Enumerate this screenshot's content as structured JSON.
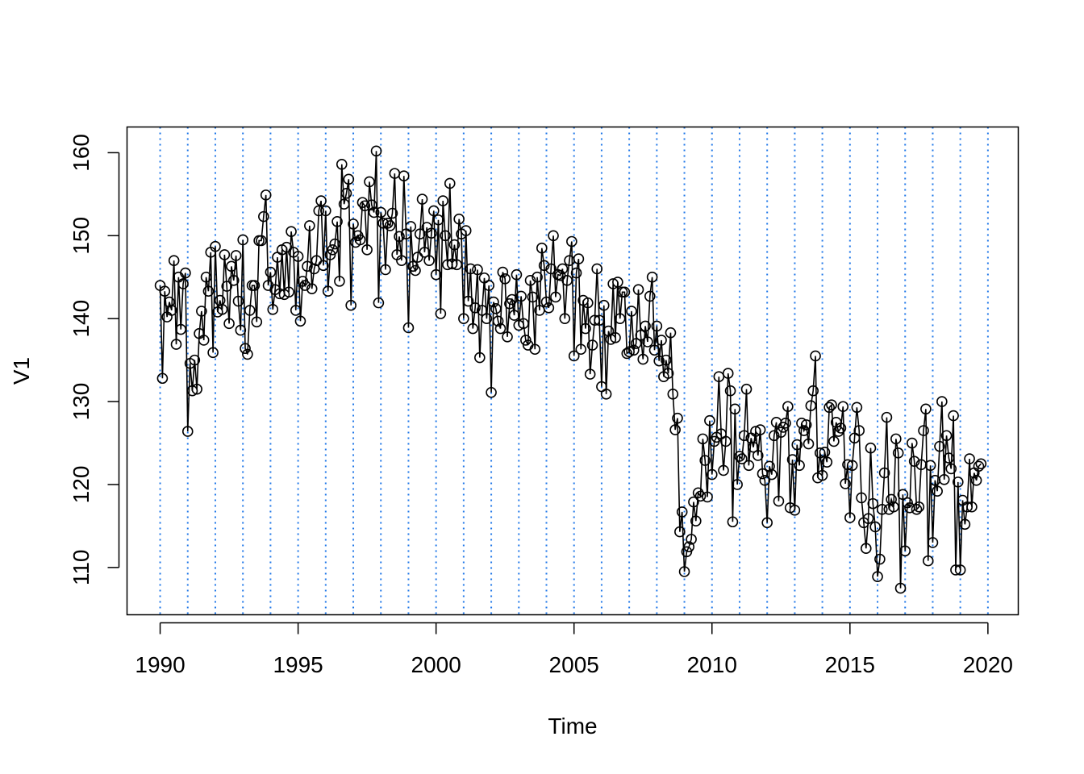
{
  "chart_data": {
    "type": "line",
    "xlabel": "Time",
    "ylabel": "V1",
    "xlim": [
      1988.8,
      2021.1
    ],
    "ylim": [
      104.3,
      163.1
    ],
    "x_ticks": [
      1990,
      1995,
      2000,
      2005,
      2010,
      2015,
      2020
    ],
    "x_tick_labels": [
      "1990",
      "1995",
      "2000",
      "2005",
      "2010",
      "2015",
      "2020"
    ],
    "y_ticks": [
      110,
      120,
      130,
      140,
      150,
      160
    ],
    "y_tick_labels": [
      "110",
      "120",
      "130",
      "140",
      "150",
      "160"
    ],
    "vlines": [
      1990,
      1991,
      1992,
      1993,
      1994,
      1995,
      1996,
      1997,
      1998,
      1999,
      2000,
      2001,
      2002,
      2003,
      2004,
      2005,
      2006,
      2007,
      2008,
      2009,
      2010,
      2011,
      2012,
      2013,
      2014,
      2015,
      2016,
      2017,
      2018,
      2019,
      2020
    ],
    "vline_color": "#1f77e8",
    "line_color": "#000000",
    "marker": "open-circle",
    "grid": false,
    "start": {
      "year": 1990,
      "period": 1
    },
    "frequency": 12,
    "series": [
      {
        "values": [
          144.0,
          132.8,
          143.3,
          140.2,
          142.0,
          141.0,
          147.0,
          136.9,
          145.0,
          138.7,
          144.2,
          145.5,
          126.4,
          134.6,
          131.3,
          135.0,
          131.5,
          138.2,
          140.9,
          137.4,
          145.0,
          143.3,
          148.0,
          135.9,
          148.7,
          140.8,
          142.2,
          141.1,
          147.7,
          143.9,
          139.4,
          146.3,
          144.6,
          147.6,
          142.1,
          138.6,
          149.5,
          136.4,
          135.7,
          141.0,
          144.0,
          144.0,
          139.6,
          149.4,
          149.4,
          152.3,
          154.9,
          144.0,
          145.6,
          141.1,
          143.5,
          147.4,
          143.0,
          148.3,
          142.9,
          148.6,
          143.2,
          150.5,
          148.0,
          141.0,
          147.5,
          139.7,
          144.5,
          144.0,
          146.3,
          151.2,
          143.6,
          146.0,
          147.0,
          153.0,
          154.2,
          146.4,
          153.0,
          143.3,
          147.7,
          148.3,
          149.0,
          151.7,
          144.5,
          158.6,
          153.8,
          155.1,
          156.8,
          141.6,
          151.4,
          149.2,
          150.0,
          149.5,
          154.0,
          153.6,
          148.3,
          156.5,
          153.7,
          152.8,
          160.2,
          141.9,
          152.8,
          151.5,
          145.9,
          151.5,
          151.2,
          152.7,
          157.5,
          147.7,
          149.9,
          147.0,
          157.2,
          150.2,
          138.9,
          151.1,
          146.3,
          145.8,
          147.4,
          150.2,
          154.4,
          148.0,
          151.0,
          147.0,
          150.3,
          153.0,
          145.3,
          151.9,
          140.6,
          154.2,
          150.0,
          146.5,
          156.3,
          146.6,
          148.9,
          146.5,
          152.0,
          150.2,
          140.0,
          150.6,
          142.1,
          146.0,
          138.8,
          141.3,
          145.9,
          135.3,
          141.0,
          144.9,
          140.0,
          144.0,
          131.1,
          142.0,
          141.2,
          139.7,
          138.8,
          145.6,
          144.8,
          137.8,
          141.8,
          142.3,
          140.4,
          145.3,
          139.2,
          142.7,
          139.4,
          137.4,
          136.8,
          144.6,
          142.6,
          136.3,
          145.0,
          141.0,
          148.5,
          146.4,
          142.0,
          141.3,
          146.0,
          150.0,
          142.6,
          145.3,
          145.2,
          146.0,
          140.0,
          144.6,
          147.0,
          149.3,
          135.5,
          145.5,
          147.2,
          136.3,
          142.2,
          138.8,
          141.9,
          133.3,
          136.8,
          139.8,
          146.0,
          139.8,
          131.8,
          141.6,
          130.9,
          138.5,
          137.5,
          144.2,
          137.7,
          144.4,
          140.0,
          143.2,
          143.2,
          135.8,
          136.0,
          140.9,
          136.2,
          137.0,
          143.5,
          138.0,
          135.1,
          139.1,
          137.2,
          142.7,
          145.0,
          136.2,
          139.1,
          134.9,
          137.4,
          133.0,
          135.0,
          133.4,
          138.3,
          130.9,
          126.6,
          128.0,
          114.3,
          116.7,
          109.5,
          111.9,
          112.5,
          113.4,
          117.9,
          115.6,
          119.0,
          118.6,
          125.5,
          122.9,
          118.5,
          127.7,
          121.2,
          125.2,
          125.7,
          133.0,
          126.1,
          121.7,
          125.2,
          133.4,
          131.3,
          115.5,
          129.1,
          120.0,
          123.4,
          123.1,
          125.9,
          131.5,
          122.3,
          125.6,
          124.5,
          126.4,
          123.5,
          126.6,
          121.3,
          120.5,
          115.4,
          122.2,
          121.2,
          125.9,
          127.5,
          118.0,
          126.3,
          126.9,
          127.4,
          129.4,
          117.2,
          123.0,
          116.9,
          124.8,
          122.3,
          127.4,
          126.5,
          127.2,
          124.9,
          129.5,
          131.3,
          135.5,
          120.8,
          123.8,
          121.1,
          123.9,
          122.7,
          129.3,
          129.6,
          125.2,
          127.5,
          126.4,
          126.8,
          129.4,
          120.1,
          122.4,
          116.0,
          122.3,
          125.6,
          129.3,
          126.5,
          118.4,
          115.4,
          112.3,
          115.9,
          124.4,
          117.7,
          114.9,
          108.9,
          111.0,
          117.0,
          121.4,
          128.1,
          117.0,
          118.2,
          117.3,
          125.5,
          123.8,
          107.5,
          118.8,
          112.0,
          117.8,
          117.2,
          125.0,
          122.8,
          117.0,
          117.3,
          122.4,
          126.5,
          129.1,
          110.8,
          122.3,
          113.0,
          120.5,
          119.2,
          124.6,
          130.0,
          120.6,
          125.9,
          123.2,
          121.9,
          128.3,
          109.7,
          120.3,
          109.7,
          118.1,
          115.2,
          117.3,
          123.1,
          117.3,
          121.4,
          120.5,
          122.2,
          122.5
        ]
      }
    ]
  }
}
